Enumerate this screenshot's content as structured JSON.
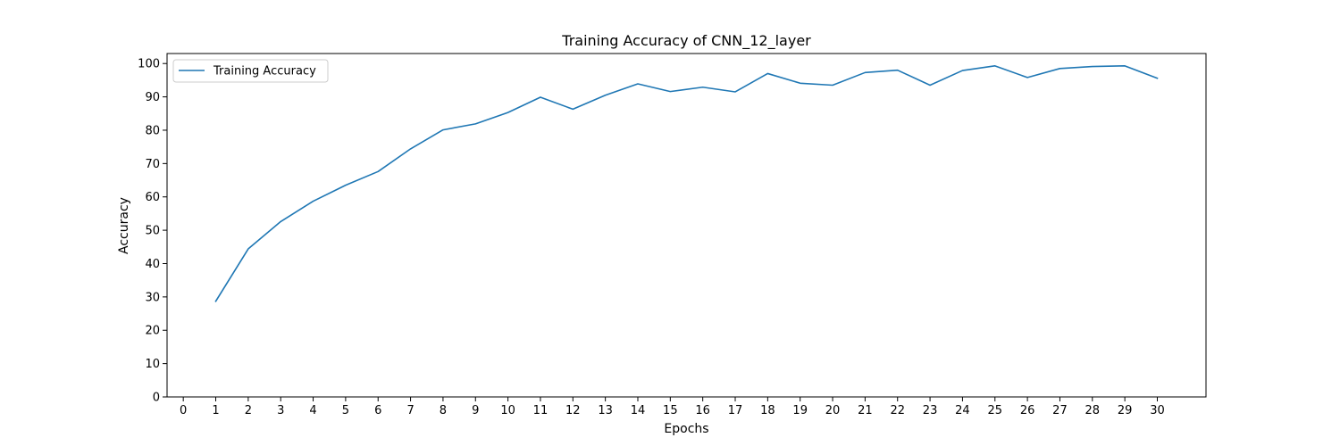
{
  "chart_data": {
    "type": "line",
    "title": "Training Accuracy of CNN_12_layer",
    "xlabel": "Epochs",
    "ylabel": "Accuracy",
    "xlim": [
      -0.5,
      31.5
    ],
    "ylim": [
      0,
      103
    ],
    "x_ticks": [
      0,
      1,
      2,
      3,
      4,
      5,
      6,
      7,
      8,
      9,
      10,
      11,
      12,
      13,
      14,
      15,
      16,
      17,
      18,
      19,
      20,
      21,
      22,
      23,
      24,
      25,
      26,
      27,
      28,
      29,
      30
    ],
    "y_ticks": [
      0,
      10,
      20,
      30,
      40,
      50,
      60,
      70,
      80,
      90,
      100
    ],
    "grid": false,
    "legend_position": "top-left",
    "series": [
      {
        "name": "Training Accuracy",
        "color": "#1f77b4",
        "x": [
          1,
          2,
          3,
          4,
          5,
          6,
          7,
          8,
          9,
          10,
          11,
          12,
          13,
          14,
          15,
          16,
          17,
          18,
          19,
          20,
          21,
          22,
          23,
          24,
          25,
          26,
          27,
          28,
          29,
          30
        ],
        "y": [
          28.7,
          44.4,
          52.6,
          58.7,
          63.5,
          67.6,
          74.4,
          80.1,
          81.9,
          85.3,
          89.9,
          86.3,
          90.5,
          93.9,
          91.6,
          92.9,
          91.5,
          97.0,
          94.1,
          93.5,
          97.3,
          98.0,
          93.5,
          97.9,
          99.3,
          95.8,
          98.5,
          99.1,
          99.3,
          95.6
        ]
      }
    ]
  }
}
